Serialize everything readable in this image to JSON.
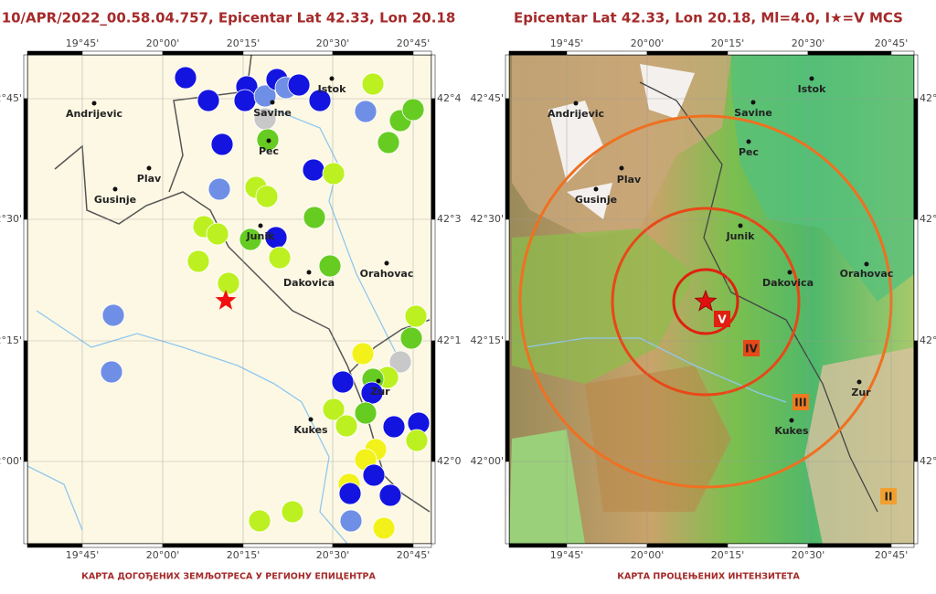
{
  "panels": [
    {
      "title": "10/APR/2022_00.58.04.757, Epicentar Lat 42.33, Lon 20.18",
      "caption": "КАРТА ДОГОЂЕНИХ ЗЕМЉОТРЕСА У РЕГИОНУ ЕПИЦЕНТРА",
      "x_ticks": [
        "19°45'",
        "20°00'",
        "20°15'",
        "20°30'",
        "20°45'"
      ],
      "y_ticks_left": [
        "42°45'",
        "42°30'",
        "42°15'",
        "42°00'"
      ],
      "y_ticks_right": [
        "42°4",
        "42°3",
        "42°1",
        "42°0"
      ],
      "towns": [
        "Andrijevic",
        "Plav",
        "Gusinje",
        "Istok",
        "Savine",
        "Pec",
        "Junik",
        "Dakovica",
        "Orahovac",
        "Zur",
        "Kukes"
      ]
    },
    {
      "title": "Epicentar Lat 42.33, Lon 20.18, Ml=4.0, I★=V MCS",
      "caption": "КАРТА ПРОЦЕЊЕНИХ ИНТЕНЗИТЕТА",
      "x_ticks": [
        "19°45'",
        "20°00'",
        "20°15'",
        "20°30'",
        "20°45'"
      ],
      "y_ticks_left": [
        "42°45'",
        "42°30'",
        "42°15'",
        "42°00'"
      ],
      "y_ticks_right": [
        "42°4",
        "42°3",
        "42°1",
        "42°0"
      ],
      "towns": [
        "Andrijevic",
        "Istok",
        "Savine",
        "Pec",
        "Plav",
        "Gusinje",
        "Junik",
        "Dakovica",
        "Orahovac",
        "Zur",
        "Kukes"
      ],
      "intensity_labels": [
        "V",
        "IV",
        "III",
        "II"
      ]
    }
  ]
}
